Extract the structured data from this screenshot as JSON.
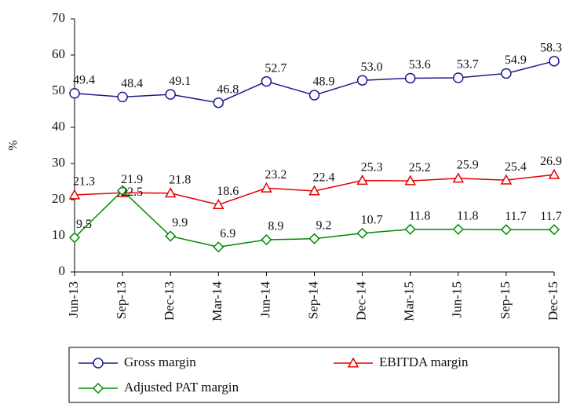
{
  "chart_data": {
    "type": "line",
    "ylabel": "%",
    "categories": [
      "Jun-13",
      "Sep-13",
      "Dec-13",
      "Mar-14",
      "Jun-14",
      "Sep-14",
      "Dec-14",
      "Mar-15",
      "Jun-15",
      "Sep-15",
      "Dec-15"
    ],
    "ylim": [
      0,
      70
    ],
    "yticks": [
      0,
      10,
      20,
      30,
      40,
      50,
      60,
      70
    ],
    "grid": false,
    "legend": "bottom",
    "series": [
      {
        "name": "Gross margin",
        "color": "#1c1c8c",
        "marker": "circle",
        "values": [
          49.4,
          48.4,
          49.1,
          46.8,
          52.7,
          48.9,
          53.0,
          53.6,
          53.7,
          54.9,
          58.3
        ],
        "value_labels": [
          "49.4",
          "48.4",
          "49.1",
          "46.8",
          "52.7",
          "48.9",
          "53.0",
          "53.6",
          "53.7",
          "54.9",
          "58.3"
        ]
      },
      {
        "name": "EBITDA margin",
        "color": "#e60000",
        "marker": "triangle",
        "values": [
          21.3,
          21.9,
          21.8,
          18.6,
          23.2,
          22.4,
          25.3,
          25.2,
          25.9,
          25.4,
          26.9
        ],
        "value_labels": [
          "21.3",
          "21.9",
          "21.8",
          "18.6",
          "23.2",
          "22.4",
          "25.3",
          "25.2",
          "25.9",
          "25.4",
          "26.9"
        ]
      },
      {
        "name": "Adjusted PAT margin",
        "color": "#008a00",
        "marker": "diamond",
        "values": [
          9.5,
          22.5,
          9.9,
          6.9,
          8.9,
          9.2,
          10.7,
          11.8,
          11.8,
          11.7,
          11.7
        ],
        "value_labels": [
          "9.5",
          "22.5",
          "9.9",
          "6.9",
          "8.9",
          "9.2",
          "10.7",
          "11.8",
          "11.8",
          "11.7",
          "11.7"
        ]
      }
    ]
  }
}
